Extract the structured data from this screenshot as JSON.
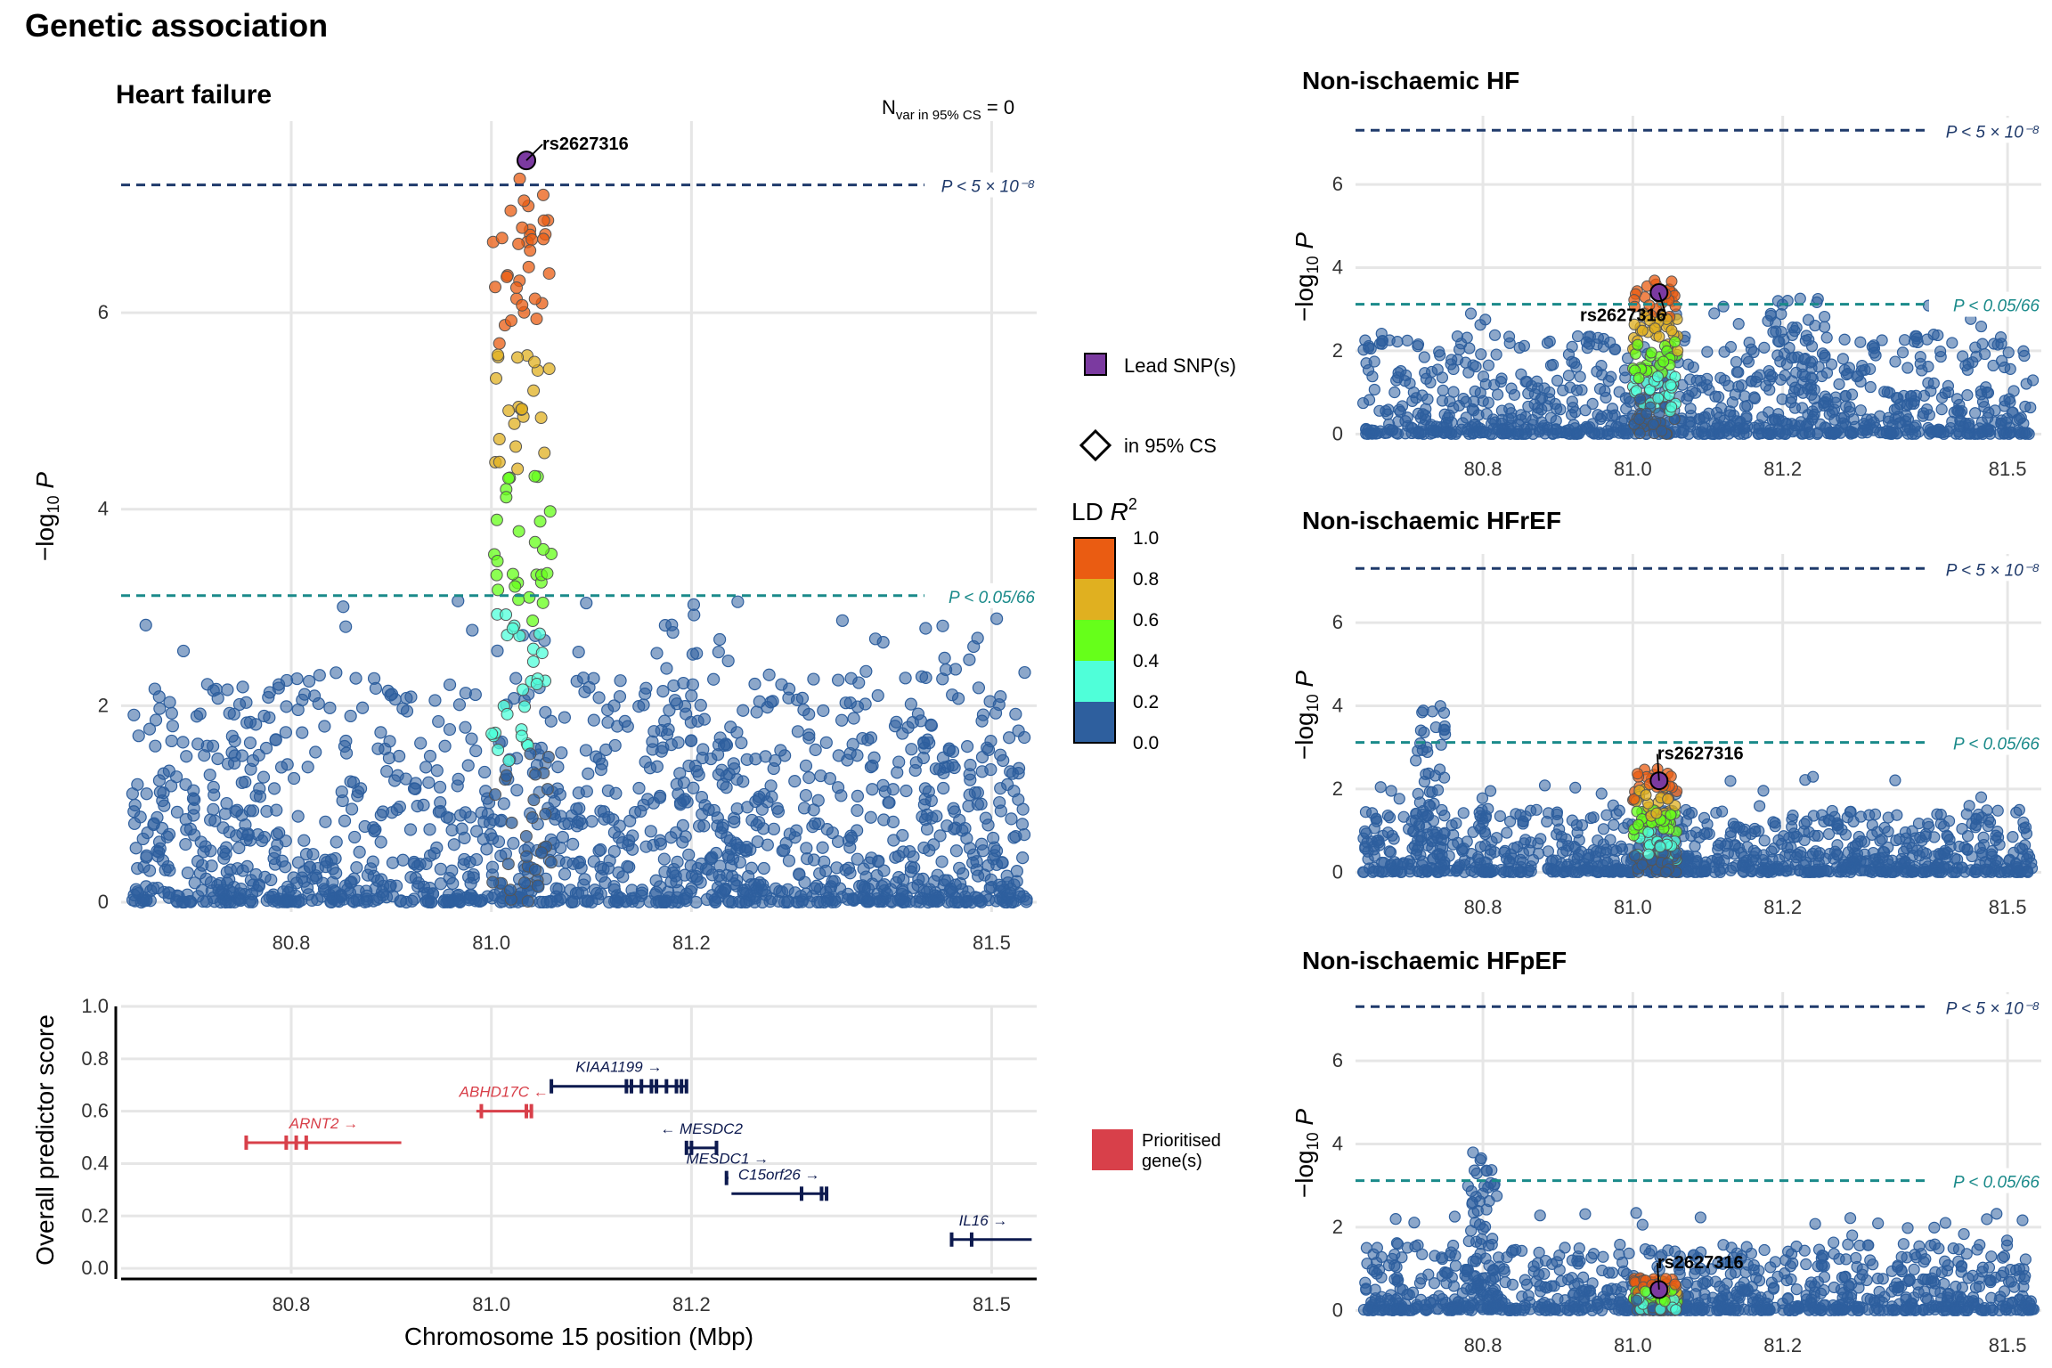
{
  "figure_title": "Genetic association",
  "colors": {
    "navy_line": "#1f3a6b",
    "teal_line": "#1a8a8a",
    "lead_snp": "#7b3aa0",
    "prioritised": "#d8404a",
    "gene_default": "#0d1a4f",
    "grid": "#e6e6e6",
    "ld_bins": [
      "#2e5f9e",
      "#4fffd9",
      "#66ff1a",
      "#e0b020",
      "#ea5c12"
    ]
  },
  "legend": {
    "lead_snp_label": "Lead SNP(s)",
    "cs_label": "in 95% CS",
    "ld_title": "LD R²",
    "ld_ticks": [
      "1.0",
      "0.8",
      "0.6",
      "0.4",
      "0.2",
      "0.0"
    ],
    "prioritised_label_1": "Prioritised",
    "prioritised_label_2": "gene(s)"
  },
  "chart_data": [
    {
      "id": "heart-failure",
      "type": "scatter",
      "title": "Heart failure",
      "annotation": "Nvar in 95% CS = 0",
      "xlabel": "",
      "ylabel": "−log10 P",
      "xlim": [
        80.63,
        81.545
      ],
      "ylim": [
        -0.1,
        7.95
      ],
      "xticks": [
        80.8,
        81.0,
        81.2,
        81.5
      ],
      "xtick_labels": [
        "80.8",
        "81.0",
        "81.2",
        "81.5"
      ],
      "yticks": [
        0,
        2,
        4,
        6
      ],
      "thresholds": [
        {
          "y": 7.301,
          "label": "P < 5 × 10⁻⁸",
          "color": "navy"
        },
        {
          "y": 3.12,
          "label": "P < 0.05/66",
          "color": "teal"
        }
      ],
      "lead_snp": {
        "name": "rs2627316",
        "x": 81.035,
        "y": 7.55
      },
      "lead_label_pos": "right",
      "peak": {
        "center": 81.03,
        "half_width": 0.03,
        "max_y": 7.3
      },
      "secondary_peaks": [
        {
          "center": 81.21,
          "half_width": 0.04,
          "max_y": 3.1
        }
      ],
      "background_max": 2.3,
      "n_points": 1400
    },
    {
      "id": "nonisch-hf",
      "type": "scatter",
      "title": "Non-ischaemic HF",
      "xlim": [
        80.63,
        81.545
      ],
      "ylim": [
        -0.1,
        7.65
      ],
      "xticks": [
        80.8,
        81.0,
        81.2,
        81.5
      ],
      "xtick_labels": [
        "80.8",
        "81.0",
        "81.2",
        "81.5"
      ],
      "yticks": [
        0,
        2,
        4,
        6
      ],
      "ylabel": "−log10 P",
      "thresholds": [
        {
          "y": 7.301,
          "label": "P < 5 × 10⁻⁸",
          "color": "navy"
        },
        {
          "y": 3.12,
          "label": "P < 0.05/66",
          "color": "teal"
        }
      ],
      "lead_snp": {
        "name": "rs2627316",
        "x": 81.035,
        "y": 3.4
      },
      "lead_label_pos": "below-left",
      "peak": {
        "center": 81.03,
        "half_width": 0.03,
        "max_y": 3.6
      },
      "secondary_peaks": [
        {
          "center": 81.22,
          "half_width": 0.04,
          "max_y": 3.3
        }
      ],
      "background_max": 2.4,
      "n_points": 900
    },
    {
      "id": "nonisch-hfref",
      "type": "scatter",
      "title": "Non-ischaemic HFrEF",
      "xlim": [
        80.63,
        81.545
      ],
      "ylim": [
        -0.1,
        7.65
      ],
      "xticks": [
        80.8,
        81.0,
        81.2,
        81.5
      ],
      "xtick_labels": [
        "80.8",
        "81.0",
        "81.2",
        "81.5"
      ],
      "yticks": [
        0,
        2,
        4,
        6
      ],
      "ylabel": "−log10 P",
      "thresholds": [
        {
          "y": 7.301,
          "label": "P < 5 × 10⁻⁸",
          "color": "navy"
        },
        {
          "y": 3.12,
          "label": "P < 0.05/66",
          "color": "teal"
        }
      ],
      "lead_snp": {
        "name": "rs2627316",
        "x": 81.035,
        "y": 2.2
      },
      "lead_label_pos": "above-right",
      "peak": {
        "center": 81.03,
        "half_width": 0.03,
        "max_y": 2.4
      },
      "secondary_peaks": [
        {
          "center": 80.73,
          "half_width": 0.02,
          "max_y": 4.0
        }
      ],
      "background_max": 1.5,
      "n_points": 900
    },
    {
      "id": "nonisch-hfpef",
      "type": "scatter",
      "title": "Non-ischaemic HFpEF",
      "xlim": [
        80.63,
        81.545
      ],
      "ylim": [
        -0.1,
        7.65
      ],
      "xticks": [
        80.8,
        81.0,
        81.2,
        81.5
      ],
      "xtick_labels": [
        "80.8",
        "81.0",
        "81.2",
        "81.5"
      ],
      "yticks": [
        0,
        2,
        4,
        6
      ],
      "ylabel": "−log10 P",
      "thresholds": [
        {
          "y": 7.301,
          "label": "P < 5 × 10⁻⁸",
          "color": "navy"
        },
        {
          "y": 3.12,
          "label": "P < 0.05/66",
          "color": "teal"
        }
      ],
      "lead_snp": {
        "name": "rs2627316",
        "x": 81.035,
        "y": 0.5
      },
      "lead_label_pos": "above-right",
      "peak": {
        "center": 81.03,
        "half_width": 0.03,
        "max_y": 0.7
      },
      "secondary_peaks": [
        {
          "center": 80.8,
          "half_width": 0.02,
          "max_y": 3.8
        }
      ],
      "background_max": 1.6,
      "n_points": 900
    },
    {
      "id": "gene-track",
      "type": "gene-track",
      "xlabel": "Chromosome 15 position (Mbp)",
      "ylabel": "Overall predictor score",
      "xlim": [
        80.63,
        81.545
      ],
      "ylim": [
        -0.02,
        1.0
      ],
      "xticks": [
        80.8,
        81.0,
        81.2,
        81.5
      ],
      "xtick_labels": [
        "80.8",
        "81.0",
        "81.2",
        "81.5"
      ],
      "yticks": [
        0.0,
        0.2,
        0.4,
        0.6,
        0.8,
        1.0
      ],
      "ytick_labels": [
        "0.0",
        "0.2",
        "0.4",
        "0.6",
        "0.8",
        "1.0"
      ],
      "genes": [
        {
          "name": "ARNT2",
          "label": "ARNT2 →",
          "start": 80.755,
          "end": 80.91,
          "score": 0.48,
          "prioritised": true,
          "exons": [
            80.755,
            80.795,
            80.805,
            80.815
          ]
        },
        {
          "name": "ABHD17C",
          "label": "ABHD17C ←",
          "start": 80.985,
          "end": 81.04,
          "score": 0.6,
          "prioritised": true,
          "exons": [
            80.99,
            81.035,
            81.04
          ]
        },
        {
          "name": "KIAA1199",
          "label": "KIAA1199 →",
          "start": 81.06,
          "end": 81.195,
          "score": 0.695,
          "prioritised": false,
          "exons": [
            81.06,
            81.135,
            81.14,
            81.15,
            81.16,
            81.165,
            81.175,
            81.185,
            81.19,
            81.195
          ]
        },
        {
          "name": "MESDC2",
          "label": "← MESDC2",
          "start": 81.195,
          "end": 81.225,
          "score": 0.46,
          "prioritised": false,
          "exons": [
            81.195,
            81.2,
            81.225
          ]
        },
        {
          "name": "MESDC1",
          "label": "MESDC1 →",
          "start": 81.235,
          "end": 81.237,
          "score": 0.345,
          "prioritised": false,
          "exons": [
            81.235
          ]
        },
        {
          "name": "C15orf26",
          "label": "C15orf26 →",
          "start": 81.24,
          "end": 81.335,
          "score": 0.285,
          "prioritised": false,
          "exons": [
            81.31,
            81.33,
            81.335
          ]
        },
        {
          "name": "IL16",
          "label": "IL16 →",
          "start": 81.46,
          "end": 81.54,
          "score": 0.11,
          "prioritised": false,
          "exons": [
            81.46,
            81.48
          ]
        }
      ]
    }
  ]
}
